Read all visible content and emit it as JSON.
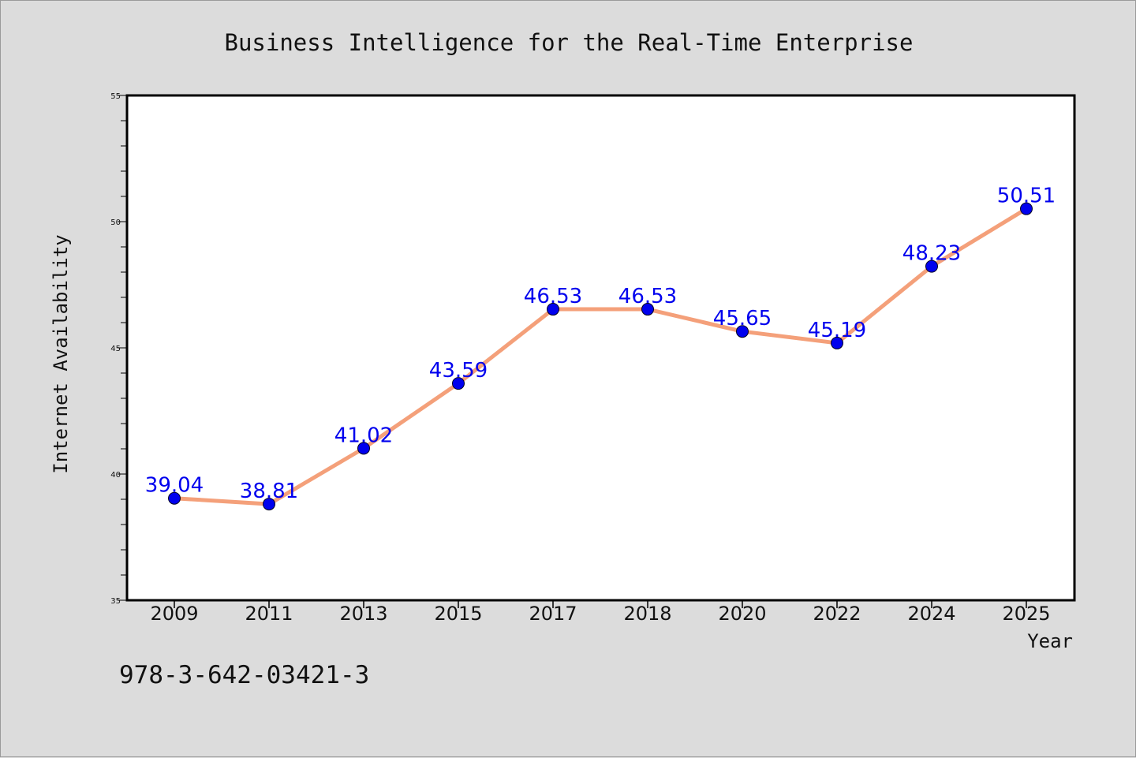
{
  "chart_data": {
    "type": "line",
    "title": "Business Intelligence for the Real-Time Enterprise",
    "xlabel": "Year",
    "ylabel": "Internet Availability",
    "categories": [
      "2009",
      "2011",
      "2013",
      "2015",
      "2017",
      "2018",
      "2020",
      "2022",
      "2024",
      "2025"
    ],
    "series": [
      {
        "values": [
          39.04,
          38.81,
          41.02,
          43.59,
          46.53,
          46.53,
          45.65,
          45.19,
          48.23,
          50.51
        ],
        "labels": [
          "39.04",
          "38.81",
          "41.02",
          "43.59",
          "46.53",
          "46.53",
          "45.65",
          "45.19",
          "48.23",
          "50.51"
        ]
      }
    ],
    "ylim": [
      35,
      55
    ],
    "yticks": [
      "35",
      "40",
      "45",
      "50",
      "55"
    ],
    "grid": false,
    "line_color": "#f4a07a",
    "marker_color": "#0000ee",
    "label_color": "#0000ee"
  },
  "annotation": {
    "isbn": "978-3-642-03421-3"
  }
}
